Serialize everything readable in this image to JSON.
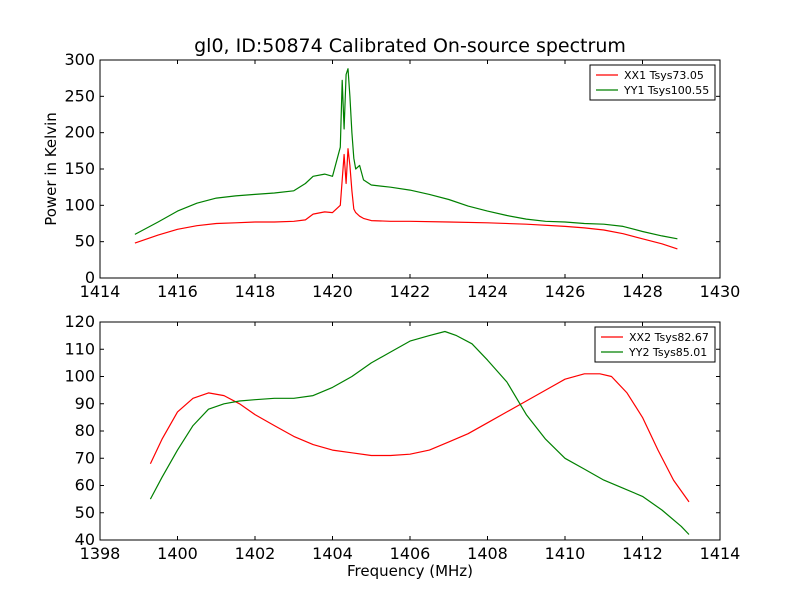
{
  "figure": {
    "title": "gl0, ID:50874 Calibrated On-source spectrum"
  },
  "chart_data": [
    {
      "type": "line",
      "title": "gl0, ID:50874 Calibrated On-source spectrum",
      "xlabel": "",
      "ylabel": "Power in Kelvin",
      "xlim": [
        1414,
        1430
      ],
      "ylim": [
        0,
        300
      ],
      "xticks": [
        1414,
        1416,
        1418,
        1420,
        1422,
        1424,
        1426,
        1428,
        1430
      ],
      "yticks": [
        0,
        50,
        100,
        150,
        200,
        250,
        300
      ],
      "grid": false,
      "legend_position": "top-right",
      "series": [
        {
          "name": "XX1 Tsys73.05",
          "color": "#ff0000",
          "x": [
            1414.9,
            1415.5,
            1416.0,
            1416.5,
            1417.0,
            1417.5,
            1418.0,
            1418.5,
            1419.0,
            1419.3,
            1419.5,
            1419.8,
            1420.0,
            1420.2,
            1420.3,
            1420.35,
            1420.4,
            1420.45,
            1420.5,
            1420.55,
            1420.6,
            1420.7,
            1420.8,
            1421.0,
            1421.5,
            1422.0,
            1423.0,
            1424.0,
            1425.0,
            1426.0,
            1426.5,
            1427.0,
            1427.5,
            1428.0,
            1428.5,
            1428.9
          ],
          "y": [
            48,
            59,
            67,
            72,
            75,
            76,
            77,
            77,
            78,
            80,
            88,
            91,
            90,
            100,
            170,
            130,
            178,
            155,
            120,
            95,
            90,
            85,
            82,
            79,
            78,
            78,
            77,
            76,
            74,
            71,
            69,
            66,
            61,
            54,
            47,
            40
          ]
        },
        {
          "name": "YY1 Tsys100.55",
          "color": "#008000",
          "x": [
            1414.9,
            1415.5,
            1416.0,
            1416.5,
            1417.0,
            1417.5,
            1418.0,
            1418.5,
            1419.0,
            1419.3,
            1419.5,
            1419.8,
            1420.0,
            1420.2,
            1420.25,
            1420.3,
            1420.35,
            1420.4,
            1420.45,
            1420.5,
            1420.55,
            1420.6,
            1420.7,
            1420.8,
            1421.0,
            1421.5,
            1422.0,
            1422.5,
            1423.0,
            1423.5,
            1424.0,
            1424.5,
            1425.0,
            1425.5,
            1426.0,
            1426.5,
            1427.0,
            1427.5,
            1428.0,
            1428.5,
            1428.9
          ],
          "y": [
            60,
            77,
            92,
            103,
            110,
            113,
            115,
            117,
            120,
            130,
            140,
            143,
            140,
            180,
            272,
            205,
            280,
            288,
            250,
            200,
            165,
            150,
            155,
            135,
            128,
            125,
            121,
            115,
            108,
            99,
            92,
            86,
            81,
            78,
            77,
            75,
            74,
            71,
            64,
            58,
            54
          ]
        }
      ]
    },
    {
      "type": "line",
      "title": "",
      "xlabel": "Frequency (MHz)",
      "ylabel": "",
      "xlim": [
        1398,
        1414
      ],
      "ylim": [
        40,
        120
      ],
      "xticks": [
        1398,
        1400,
        1402,
        1404,
        1406,
        1408,
        1410,
        1412,
        1414
      ],
      "yticks": [
        40,
        50,
        60,
        70,
        80,
        90,
        100,
        110,
        120
      ],
      "grid": false,
      "legend_position": "top-right",
      "series": [
        {
          "name": "XX2 Tsys82.67",
          "color": "#ff0000",
          "x": [
            1399.3,
            1399.6,
            1400.0,
            1400.4,
            1400.8,
            1401.2,
            1401.6,
            1402.0,
            1402.5,
            1403.0,
            1403.5,
            1404.0,
            1404.5,
            1405.0,
            1405.5,
            1406.0,
            1406.5,
            1407.0,
            1407.5,
            1408.0,
            1408.5,
            1409.0,
            1409.5,
            1410.0,
            1410.5,
            1410.9,
            1411.2,
            1411.6,
            1412.0,
            1412.4,
            1412.8,
            1413.2
          ],
          "y": [
            68,
            77,
            87,
            92,
            94,
            93,
            90,
            86,
            82,
            78,
            75,
            73,
            72,
            71,
            71,
            71.5,
            73,
            76,
            79,
            83,
            87,
            91,
            95,
            99,
            101,
            101,
            100,
            94,
            85,
            73,
            62,
            54
          ]
        },
        {
          "name": "YY2 Tsys85.01",
          "color": "#008000",
          "x": [
            1399.3,
            1399.6,
            1400.0,
            1400.4,
            1400.8,
            1401.2,
            1401.6,
            1402.0,
            1402.5,
            1403.0,
            1403.5,
            1404.0,
            1404.5,
            1405.0,
            1405.5,
            1406.0,
            1406.5,
            1406.9,
            1407.2,
            1407.6,
            1408.0,
            1408.5,
            1409.0,
            1409.5,
            1410.0,
            1410.5,
            1411.0,
            1411.5,
            1412.0,
            1412.5,
            1413.0,
            1413.2
          ],
          "y": [
            55,
            63,
            73,
            82,
            88,
            90,
            91,
            91.5,
            92,
            92,
            93,
            96,
            100,
            105,
            109,
            113,
            115,
            116.5,
            115,
            112,
            106,
            98,
            86,
            77,
            70,
            66,
            62,
            59,
            56,
            51,
            45,
            42
          ]
        }
      ]
    }
  ]
}
